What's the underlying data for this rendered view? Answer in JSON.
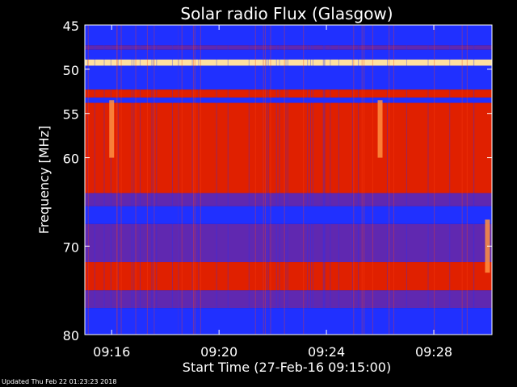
{
  "chart_data": {
    "type": "heatmap",
    "title": "Solar radio Flux (Glasgow)",
    "xlabel": "Start Time (27-Feb-16 09:15:00)",
    "ylabel": "Frequency [MHz]",
    "x_unit": "time (HH:MM, 27-Feb-16)",
    "xlim": [
      "09:15:00",
      "09:30:10"
    ],
    "ylim": [
      45,
      80
    ],
    "y_inverted": true,
    "x_ticks": [
      "09:16",
      "09:20",
      "09:24",
      "09:28"
    ],
    "y_ticks": [
      45,
      50,
      55,
      60,
      70,
      80
    ],
    "colormap": [
      "#0000a0",
      "#2030ff",
      "#6028b0",
      "#b01010",
      "#e02000",
      "#ff4010",
      "#ff9040",
      "#ffe0a0"
    ],
    "frequency_bands": [
      {
        "from_mhz": 45.0,
        "to_mhz": 47.3,
        "level": "low"
      },
      {
        "from_mhz": 47.3,
        "to_mhz": 47.8,
        "level": "medium"
      },
      {
        "from_mhz": 47.8,
        "to_mhz": 48.9,
        "level": "low"
      },
      {
        "from_mhz": 48.9,
        "to_mhz": 49.6,
        "level": "very-high"
      },
      {
        "from_mhz": 49.6,
        "to_mhz": 52.3,
        "level": "low"
      },
      {
        "from_mhz": 52.3,
        "to_mhz": 53.2,
        "level": "high"
      },
      {
        "from_mhz": 53.2,
        "to_mhz": 53.8,
        "level": "low"
      },
      {
        "from_mhz": 53.8,
        "to_mhz": 64.0,
        "level": "high"
      },
      {
        "from_mhz": 64.0,
        "to_mhz": 65.5,
        "level": "medium"
      },
      {
        "from_mhz": 65.5,
        "to_mhz": 67.5,
        "level": "low"
      },
      {
        "from_mhz": 67.5,
        "to_mhz": 71.8,
        "level": "medium"
      },
      {
        "from_mhz": 71.8,
        "to_mhz": 75.0,
        "level": "high"
      },
      {
        "from_mhz": 75.0,
        "to_mhz": 77.0,
        "level": "medium"
      },
      {
        "from_mhz": 77.0,
        "to_mhz": 80.0,
        "level": "low"
      }
    ],
    "bursts": [
      {
        "time": "09:16",
        "from_mhz": 53.5,
        "to_mhz": 60.0
      },
      {
        "time": "09:26",
        "from_mhz": 53.5,
        "to_mhz": 60.0
      },
      {
        "time": "09:30",
        "from_mhz": 67.0,
        "to_mhz": 73.0
      }
    ],
    "grid": false,
    "legend": "none"
  },
  "footer": {
    "updated": "Updated Thu Feb 22 01:23:23 2018"
  }
}
